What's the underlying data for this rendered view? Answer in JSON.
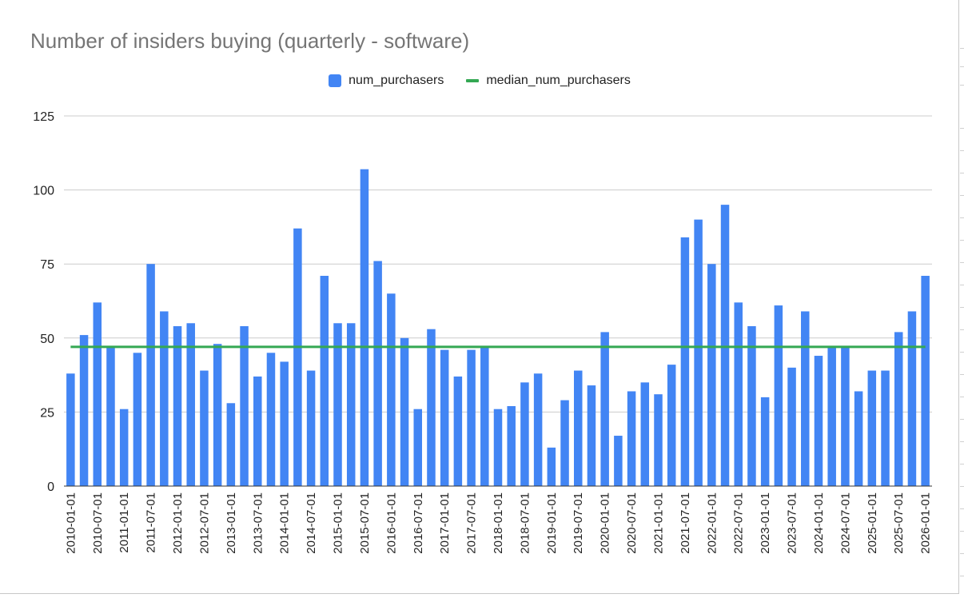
{
  "chart_data": {
    "type": "bar",
    "title": "Number of insiders buying (quarterly - software)",
    "xlabel": "",
    "ylabel": "",
    "ylim": [
      0,
      125
    ],
    "yticks": [
      0,
      25,
      50,
      75,
      100,
      125
    ],
    "grid": true,
    "legend_position": "top-center",
    "categories": [
      "2010-01-01",
      "2010-04-01",
      "2010-07-01",
      "2010-10-01",
      "2011-01-01",
      "2011-04-01",
      "2011-07-01",
      "2011-10-01",
      "2012-01-01",
      "2012-04-01",
      "2012-07-01",
      "2012-10-01",
      "2013-01-01",
      "2013-04-01",
      "2013-07-01",
      "2013-10-01",
      "2014-01-01",
      "2014-04-01",
      "2014-07-01",
      "2014-10-01",
      "2015-01-01",
      "2015-04-01",
      "2015-07-01",
      "2015-10-01",
      "2016-01-01",
      "2016-04-01",
      "2016-07-01",
      "2016-10-01",
      "2017-01-01",
      "2017-04-01",
      "2017-07-01",
      "2017-10-01",
      "2018-01-01",
      "2018-04-01",
      "2018-07-01",
      "2018-10-01",
      "2019-01-01",
      "2019-04-01",
      "2019-07-01",
      "2019-10-01",
      "2020-01-01",
      "2020-04-01",
      "2020-07-01",
      "2020-10-01",
      "2021-01-01",
      "2021-04-01",
      "2021-07-01",
      "2021-10-01",
      "2022-01-01",
      "2022-04-01",
      "2022-07-01",
      "2022-10-01",
      "2023-01-01",
      "2023-04-01",
      "2023-07-01",
      "2023-10-01",
      "2024-01-01",
      "2024-04-01",
      "2024-07-01",
      "2024-10-01",
      "2025-01-01",
      "2025-04-01",
      "2025-07-01",
      "2025-10-01",
      "2026-01-01"
    ],
    "tick_labels": [
      "2010-01-01",
      "2010-07-01",
      "2011-01-01",
      "2011-07-01",
      "2012-01-01",
      "2012-07-01",
      "2013-01-01",
      "2013-07-01",
      "2014-01-01",
      "2014-07-01",
      "2015-01-01",
      "2015-07-01",
      "2016-01-01",
      "2016-07-01",
      "2017-01-01",
      "2017-07-01",
      "2018-01-01",
      "2018-07-01",
      "2019-01-01",
      "2019-07-01",
      "2020-01-01",
      "2020-07-01",
      "2021-01-01",
      "2021-07-01",
      "2022-01-01",
      "2022-07-01",
      "2023-01-01",
      "2023-07-01",
      "2024-01-01",
      "2024-07-01",
      "2025-01-01",
      "2025-07-01",
      "2026-01-01"
    ],
    "series": [
      {
        "name": "num_purchasers",
        "type": "bar",
        "color": "#4285f4",
        "values": [
          38,
          51,
          62,
          47,
          26,
          45,
          75,
          59,
          54,
          55,
          39,
          48,
          28,
          54,
          37,
          45,
          42,
          87,
          39,
          71,
          55,
          55,
          107,
          76,
          65,
          50,
          26,
          53,
          46,
          37,
          46,
          47,
          26,
          27,
          35,
          38,
          13,
          29,
          39,
          34,
          52,
          17,
          32,
          35,
          31,
          41,
          84,
          90,
          75,
          95,
          62,
          54,
          30,
          61,
          40,
          59,
          44,
          47,
          47,
          32,
          39,
          39,
          52,
          59,
          71
        ]
      },
      {
        "name": "median_num_purchasers",
        "type": "line",
        "color": "#34a853",
        "values": [
          47,
          47,
          47,
          47,
          47,
          47,
          47,
          47,
          47,
          47,
          47,
          47,
          47,
          47,
          47,
          47,
          47,
          47,
          47,
          47,
          47,
          47,
          47,
          47,
          47,
          47,
          47,
          47,
          47,
          47,
          47,
          47,
          47,
          47,
          47,
          47,
          47,
          47,
          47,
          47,
          47,
          47,
          47,
          47,
          47,
          47,
          47,
          47,
          47,
          47,
          47,
          47,
          47,
          47,
          47,
          47,
          47,
          47,
          47,
          47,
          47,
          47,
          47,
          47,
          47
        ]
      }
    ]
  }
}
